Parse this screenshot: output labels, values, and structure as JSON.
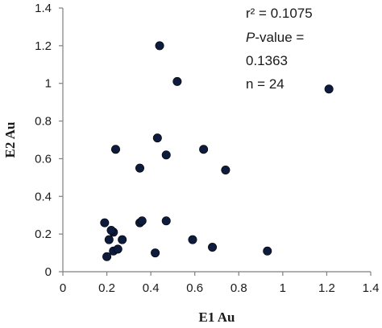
{
  "chart_data": {
    "type": "scatter",
    "xlabel": "E1 Au",
    "ylabel": "E2 Au",
    "xlim": [
      0,
      1.4
    ],
    "ylim": [
      0,
      1.4
    ],
    "xticks": [
      "0",
      "0.2",
      "0.4",
      "0.6",
      "0.8",
      "1",
      "1.2",
      "1.4"
    ],
    "yticks": [
      "0",
      "0.2",
      "0.4",
      "0.6",
      "0.8",
      "1",
      "1.2",
      "1.4"
    ],
    "grid": false,
    "marker_color": "#0d1b3d",
    "annotation": {
      "r2": "r² = 0.1075",
      "p_italic": "P",
      "p_rest": "-value  =",
      "p_value": "0.1363",
      "n": "n = 24"
    },
    "points": [
      {
        "x": 0.44,
        "y": 1.2
      },
      {
        "x": 0.52,
        "y": 1.01
      },
      {
        "x": 1.21,
        "y": 0.97
      },
      {
        "x": 0.43,
        "y": 0.71
      },
      {
        "x": 0.24,
        "y": 0.65
      },
      {
        "x": 0.47,
        "y": 0.62
      },
      {
        "x": 0.64,
        "y": 0.65
      },
      {
        "x": 0.35,
        "y": 0.55
      },
      {
        "x": 0.74,
        "y": 0.54
      },
      {
        "x": 0.19,
        "y": 0.26
      },
      {
        "x": 0.35,
        "y": 0.26
      },
      {
        "x": 0.36,
        "y": 0.27
      },
      {
        "x": 0.47,
        "y": 0.27
      },
      {
        "x": 0.23,
        "y": 0.21
      },
      {
        "x": 0.21,
        "y": 0.17
      },
      {
        "x": 0.27,
        "y": 0.17
      },
      {
        "x": 0.59,
        "y": 0.17
      },
      {
        "x": 0.23,
        "y": 0.11
      },
      {
        "x": 0.42,
        "y": 0.1
      },
      {
        "x": 0.2,
        "y": 0.08
      },
      {
        "x": 0.68,
        "y": 0.13
      },
      {
        "x": 0.93,
        "y": 0.11
      },
      {
        "x": 0.22,
        "y": 0.22
      },
      {
        "x": 0.25,
        "y": 0.12
      }
    ]
  }
}
